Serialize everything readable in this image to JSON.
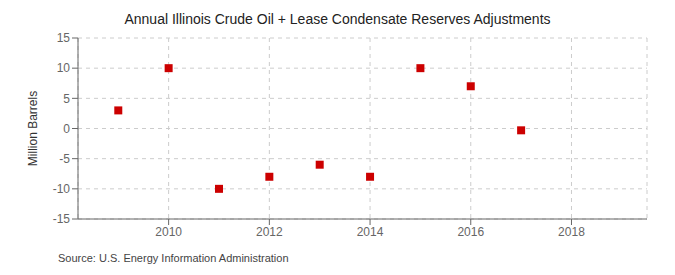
{
  "chart_data": {
    "type": "scatter",
    "title": "Annual Illinois Crude Oil + Lease Condensate Reserves Adjustments",
    "ylabel": "Million Barrels",
    "annotations": [
      "Source: U.S. Energy Information Administration"
    ],
    "x": [
      2009,
      2010,
      2011,
      2012,
      2013,
      2014,
      2015,
      2016,
      2017
    ],
    "values": [
      3.0,
      10.0,
      -10.0,
      -8.0,
      -6.0,
      -8.0,
      10.0,
      7.0,
      -0.3
    ],
    "color": "#cc0000",
    "marker": "square",
    "xlim": [
      2008.2,
      2019.5
    ],
    "xticks": [
      2010,
      2012,
      2014,
      2016,
      2018
    ],
    "ylim": [
      -15,
      15
    ],
    "yticks": [
      -15,
      -10,
      -5,
      0,
      5,
      10,
      15
    ],
    "grid": true
  }
}
